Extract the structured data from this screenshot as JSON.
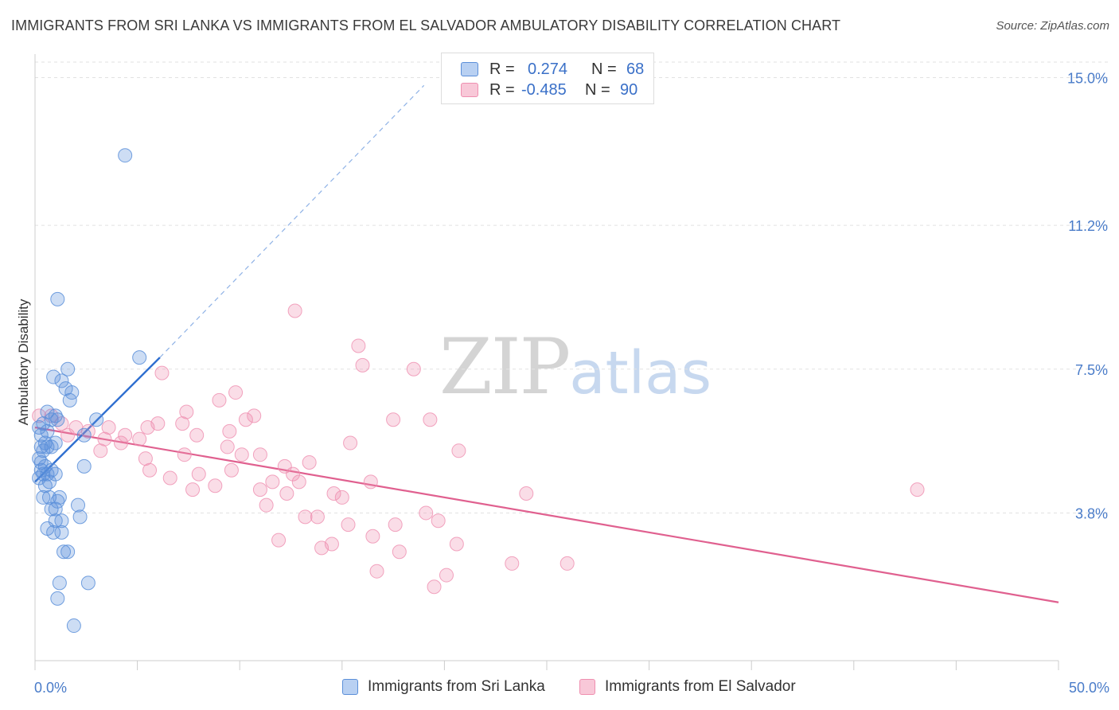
{
  "header": {
    "title": "IMMIGRANTS FROM SRI LANKA VS IMMIGRANTS FROM EL SALVADOR AMBULATORY DISABILITY CORRELATION CHART",
    "source": "Source: ZipAtlas.com"
  },
  "watermark": {
    "zip": "ZIP",
    "atlas": "atlas"
  },
  "legend": {
    "rows": [
      {
        "r_label": "R =",
        "r_value": "0.274",
        "n_label": "N =",
        "n_value": "68"
      },
      {
        "r_label": "R =",
        "r_value": "-0.485",
        "n_label": "N =",
        "n_value": "90"
      }
    ]
  },
  "bottom_legend": {
    "series_a": "Immigrants from Sri Lanka",
    "series_b": "Immigrants from El Salvador"
  },
  "chart_data": {
    "type": "scatter",
    "title": "IMMIGRANTS FROM SRI LANKA VS IMMIGRANTS FROM EL SALVADOR AMBULATORY DISABILITY CORRELATION CHART",
    "xlabel": "",
    "ylabel": "Ambulatory Disability",
    "xlim": [
      0,
      50
    ],
    "ylim": [
      0,
      15.4
    ],
    "x_tick_labels": [
      "0.0%",
      "50.0%"
    ],
    "y_ticks": [
      3.8,
      7.5,
      11.2,
      15.0
    ],
    "y_tick_labels": [
      "3.8%",
      "7.5%",
      "11.2%",
      "15.0%"
    ],
    "grid": true,
    "legend_position": "top-center",
    "colors": {
      "sri_lanka": "#5b8fd9",
      "sri_lanka_line": "#2f6fd0",
      "el_salvador": "#ef8fb0",
      "el_salvador_line": "#e0608f"
    },
    "series": [
      {
        "name": "Immigrants from Sri Lanka",
        "color": "#5b8fd9",
        "trend": {
          "x": [
            0,
            6.1
          ],
          "y": [
            4.6,
            7.8
          ],
          "dashed_extension": {
            "x": [
              6.1,
              19.0
            ],
            "y": [
              7.8,
              14.8
            ]
          }
        },
        "points": [
          [
            4.4,
            13.0
          ],
          [
            1.1,
            9.3
          ],
          [
            5.1,
            7.8
          ],
          [
            1.6,
            7.5
          ],
          [
            0.9,
            7.3
          ],
          [
            1.3,
            7.2
          ],
          [
            1.5,
            7.0
          ],
          [
            1.8,
            6.9
          ],
          [
            1.7,
            6.7
          ],
          [
            0.6,
            6.4
          ],
          [
            1.0,
            6.3
          ],
          [
            3.0,
            6.2
          ],
          [
            0.8,
            6.2
          ],
          [
            1.1,
            6.2
          ],
          [
            0.4,
            6.1
          ],
          [
            0.2,
            6.0
          ],
          [
            0.6,
            5.9
          ],
          [
            0.3,
            5.8
          ],
          [
            2.4,
            5.8
          ],
          [
            0.5,
            5.6
          ],
          [
            1.0,
            5.6
          ],
          [
            0.3,
            5.5
          ],
          [
            0.6,
            5.5
          ],
          [
            0.8,
            5.5
          ],
          [
            0.4,
            5.4
          ],
          [
            0.2,
            5.2
          ],
          [
            0.3,
            5.1
          ],
          [
            0.5,
            5.0
          ],
          [
            2.4,
            5.0
          ],
          [
            0.3,
            4.9
          ],
          [
            0.8,
            4.9
          ],
          [
            0.4,
            4.8
          ],
          [
            0.6,
            4.8
          ],
          [
            1.0,
            4.8
          ],
          [
            0.2,
            4.7
          ],
          [
            0.7,
            4.6
          ],
          [
            0.5,
            4.5
          ],
          [
            0.4,
            4.2
          ],
          [
            0.7,
            4.2
          ],
          [
            1.2,
            4.2
          ],
          [
            2.1,
            4.0
          ],
          [
            1.1,
            4.1
          ],
          [
            0.8,
            3.9
          ],
          [
            1.0,
            3.9
          ],
          [
            2.2,
            3.7
          ],
          [
            1.0,
            3.6
          ],
          [
            1.3,
            3.6
          ],
          [
            0.6,
            3.4
          ],
          [
            0.9,
            3.3
          ],
          [
            1.3,
            3.3
          ],
          [
            1.4,
            2.8
          ],
          [
            1.6,
            2.8
          ],
          [
            1.2,
            2.0
          ],
          [
            2.6,
            2.0
          ],
          [
            1.1,
            1.6
          ],
          [
            1.9,
            0.9
          ]
        ]
      },
      {
        "name": "Immigrants from El Salvador",
        "color": "#ef8fb0",
        "trend": {
          "x": [
            0,
            50
          ],
          "y": [
            6.0,
            1.5
          ]
        },
        "points": [
          [
            12.7,
            9.0
          ],
          [
            15.8,
            8.1
          ],
          [
            16.0,
            7.6
          ],
          [
            18.5,
            7.5
          ],
          [
            6.2,
            7.4
          ],
          [
            9.8,
            6.9
          ],
          [
            9.0,
            6.7
          ],
          [
            7.4,
            6.4
          ],
          [
            10.7,
            6.3
          ],
          [
            10.3,
            6.2
          ],
          [
            17.5,
            6.2
          ],
          [
            19.3,
            6.2
          ],
          [
            6.0,
            6.1
          ],
          [
            7.2,
            6.1
          ],
          [
            1.3,
            6.1
          ],
          [
            2.0,
            6.0
          ],
          [
            3.6,
            6.0
          ],
          [
            5.5,
            6.0
          ],
          [
            2.6,
            5.9
          ],
          [
            4.4,
            5.8
          ],
          [
            1.6,
            5.8
          ],
          [
            7.9,
            5.8
          ],
          [
            9.5,
            5.9
          ],
          [
            3.4,
            5.7
          ],
          [
            5.1,
            5.7
          ],
          [
            4.2,
            5.6
          ],
          [
            9.4,
            5.5
          ],
          [
            15.4,
            5.6
          ],
          [
            3.2,
            5.4
          ],
          [
            7.3,
            5.3
          ],
          [
            10.1,
            5.3
          ],
          [
            11.0,
            5.3
          ],
          [
            20.7,
            5.4
          ],
          [
            5.4,
            5.2
          ],
          [
            13.4,
            5.1
          ],
          [
            12.2,
            5.0
          ],
          [
            5.6,
            4.9
          ],
          [
            8.0,
            4.8
          ],
          [
            9.6,
            4.9
          ],
          [
            12.6,
            4.8
          ],
          [
            6.6,
            4.7
          ],
          [
            11.6,
            4.6
          ],
          [
            12.9,
            4.6
          ],
          [
            16.4,
            4.6
          ],
          [
            8.8,
            4.5
          ],
          [
            7.7,
            4.4
          ],
          [
            11.0,
            4.4
          ],
          [
            12.3,
            4.3
          ],
          [
            14.6,
            4.3
          ],
          [
            15.0,
            4.2
          ],
          [
            24.0,
            4.3
          ],
          [
            43.1,
            4.4
          ],
          [
            11.3,
            4.0
          ],
          [
            19.1,
            3.8
          ],
          [
            19.7,
            3.6
          ],
          [
            13.2,
            3.7
          ],
          [
            13.8,
            3.7
          ],
          [
            15.3,
            3.5
          ],
          [
            17.6,
            3.5
          ],
          [
            16.5,
            3.2
          ],
          [
            11.9,
            3.1
          ],
          [
            14.5,
            3.0
          ],
          [
            14.0,
            2.9
          ],
          [
            17.8,
            2.8
          ],
          [
            20.6,
            3.0
          ],
          [
            23.3,
            2.5
          ],
          [
            26.0,
            2.5
          ],
          [
            16.7,
            2.3
          ],
          [
            20.1,
            2.2
          ],
          [
            19.5,
            1.9
          ],
          [
            0.2,
            6.3
          ],
          [
            0.8,
            6.3
          ]
        ]
      }
    ]
  }
}
